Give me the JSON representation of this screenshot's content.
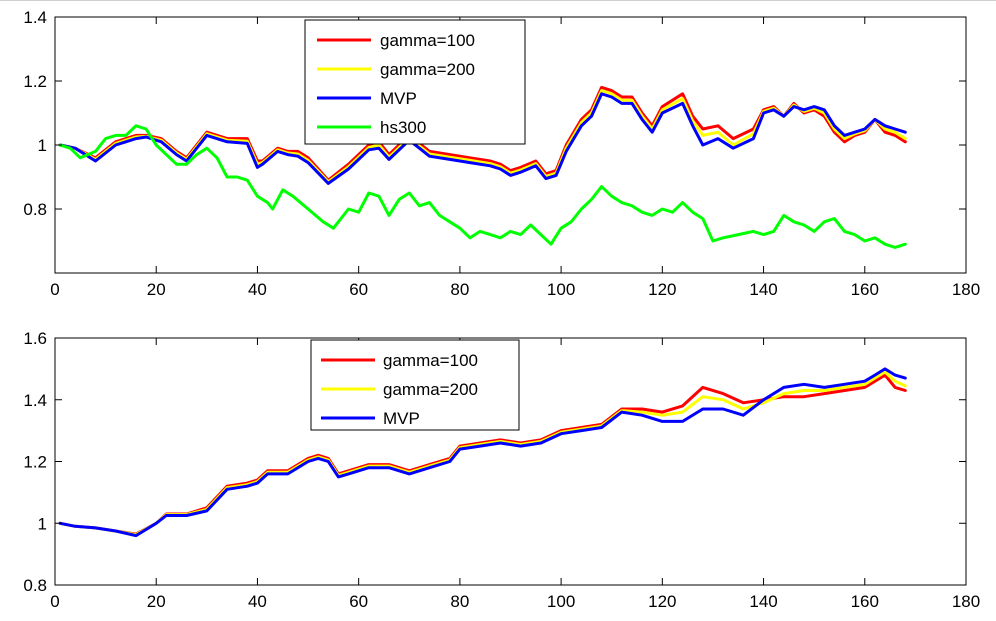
{
  "chart_data": [
    {
      "type": "line",
      "title": "",
      "xlabel": "",
      "ylabel": "",
      "xlim": [
        0,
        180
      ],
      "ylim": [
        0.6,
        1.4
      ],
      "xticks": [
        0,
        20,
        40,
        60,
        80,
        100,
        120,
        140,
        160,
        180
      ],
      "yticks": [
        0.8,
        1,
        1.2,
        1.4
      ],
      "x_tick_labels": [
        "0",
        "20",
        "40",
        "60",
        "80",
        "100",
        "120",
        "140",
        "160",
        "180"
      ],
      "y_tick_labels": [
        "0.8",
        "1",
        "1.2",
        "1.4"
      ],
      "grid": false,
      "legend_placement": "top-center",
      "series": [
        {
          "name": "gamma=100",
          "color": "#ff0000",
          "x": [
            1,
            4,
            8,
            12,
            16,
            18,
            21,
            24,
            26,
            30,
            34,
            38,
            40,
            41,
            44,
            46,
            48,
            50,
            54,
            58,
            62,
            64,
            66,
            70,
            74,
            78,
            82,
            86,
            88,
            90,
            92,
            95,
            97,
            99,
            101,
            104,
            106,
            108,
            110,
            112,
            114,
            116,
            118,
            120,
            124,
            126,
            128,
            131,
            134,
            138,
            140,
            142,
            144,
            146,
            148,
            150,
            152,
            154,
            156,
            158,
            160,
            162,
            164,
            166,
            168
          ],
          "y": [
            1.0,
            0.99,
            0.96,
            1.01,
            1.03,
            1.03,
            1.02,
            0.98,
            0.96,
            1.04,
            1.02,
            1.02,
            0.95,
            0.95,
            0.99,
            0.98,
            0.98,
            0.96,
            0.89,
            0.94,
            1.0,
            1.01,
            0.97,
            1.03,
            0.98,
            0.97,
            0.96,
            0.95,
            0.94,
            0.92,
            0.93,
            0.95,
            0.91,
            0.92,
            1.0,
            1.08,
            1.11,
            1.18,
            1.17,
            1.15,
            1.15,
            1.1,
            1.06,
            1.12,
            1.16,
            1.09,
            1.05,
            1.06,
            1.02,
            1.05,
            1.11,
            1.12,
            1.09,
            1.13,
            1.1,
            1.11,
            1.09,
            1.04,
            1.01,
            1.03,
            1.04,
            1.08,
            1.04,
            1.03,
            1.01
          ]
        },
        {
          "name": "gamma=200",
          "color": "#ffff00",
          "x": [
            1,
            4,
            8,
            12,
            16,
            18,
            21,
            24,
            26,
            30,
            34,
            38,
            40,
            41,
            44,
            46,
            48,
            50,
            54,
            58,
            62,
            64,
            66,
            70,
            74,
            78,
            82,
            86,
            88,
            90,
            92,
            95,
            97,
            99,
            101,
            104,
            106,
            108,
            110,
            112,
            114,
            116,
            118,
            120,
            124,
            126,
            128,
            131,
            134,
            138,
            140,
            142,
            144,
            146,
            148,
            150,
            152,
            154,
            156,
            158,
            160,
            162,
            164,
            166,
            168
          ],
          "y": [
            1.0,
            0.99,
            0.955,
            1.005,
            1.025,
            1.027,
            1.015,
            0.975,
            0.955,
            1.035,
            1.015,
            1.012,
            0.94,
            0.945,
            0.985,
            0.975,
            0.972,
            0.952,
            0.885,
            0.932,
            0.992,
            1.0,
            0.962,
            1.022,
            0.972,
            0.962,
            0.952,
            0.942,
            0.932,
            0.912,
            0.922,
            0.942,
            0.902,
            0.912,
            0.99,
            1.07,
            1.1,
            1.17,
            1.16,
            1.14,
            1.14,
            1.09,
            1.05,
            1.11,
            1.145,
            1.075,
            1.03,
            1.04,
            1.0,
            1.035,
            1.105,
            1.115,
            1.09,
            1.125,
            1.105,
            1.115,
            1.1,
            1.05,
            1.02,
            1.035,
            1.045,
            1.08,
            1.05,
            1.04,
            1.02
          ]
        },
        {
          "name": "MVP",
          "color": "#0000ff",
          "x": [
            1,
            4,
            8,
            12,
            16,
            18,
            21,
            24,
            26,
            30,
            34,
            38,
            40,
            41,
            44,
            46,
            48,
            50,
            54,
            58,
            62,
            64,
            66,
            70,
            74,
            78,
            82,
            86,
            88,
            90,
            92,
            95,
            97,
            99,
            101,
            104,
            106,
            108,
            110,
            112,
            114,
            116,
            118,
            120,
            124,
            126,
            128,
            131,
            134,
            138,
            140,
            142,
            144,
            146,
            148,
            150,
            152,
            154,
            156,
            158,
            160,
            162,
            164,
            166,
            168
          ],
          "y": [
            1.0,
            0.99,
            0.95,
            1.0,
            1.02,
            1.025,
            1.01,
            0.97,
            0.95,
            1.03,
            1.01,
            1.005,
            0.93,
            0.94,
            0.98,
            0.97,
            0.965,
            0.945,
            0.88,
            0.925,
            0.985,
            0.99,
            0.955,
            1.015,
            0.965,
            0.955,
            0.945,
            0.935,
            0.925,
            0.905,
            0.915,
            0.935,
            0.895,
            0.905,
            0.98,
            1.06,
            1.09,
            1.16,
            1.15,
            1.13,
            1.13,
            1.08,
            1.04,
            1.1,
            1.13,
            1.06,
            1.0,
            1.02,
            0.99,
            1.02,
            1.1,
            1.11,
            1.09,
            1.12,
            1.11,
            1.12,
            1.11,
            1.06,
            1.03,
            1.04,
            1.05,
            1.08,
            1.06,
            1.05,
            1.04
          ]
        },
        {
          "name": "hs300",
          "color": "#00ff00",
          "x": [
            1,
            3,
            5,
            8,
            10,
            12,
            14,
            16,
            18,
            20,
            22,
            24,
            26,
            28,
            30,
            32,
            34,
            36,
            38,
            40,
            42,
            43,
            45,
            47,
            50,
            53,
            55,
            58,
            60,
            62,
            64,
            66,
            68,
            70,
            72,
            74,
            76,
            78,
            80,
            82,
            84,
            86,
            88,
            90,
            92,
            94,
            96,
            98,
            100,
            102,
            104,
            106,
            108,
            110,
            112,
            114,
            116,
            118,
            120,
            122,
            124,
            126,
            128,
            130,
            132,
            135,
            138,
            140,
            142,
            144,
            146,
            148,
            150,
            152,
            154,
            156,
            158,
            160,
            162,
            164,
            166,
            168
          ],
          "y": [
            1.0,
            0.99,
            0.96,
            0.98,
            1.02,
            1.03,
            1.03,
            1.06,
            1.05,
            1.0,
            0.97,
            0.94,
            0.94,
            0.97,
            0.99,
            0.96,
            0.9,
            0.9,
            0.89,
            0.84,
            0.82,
            0.8,
            0.86,
            0.84,
            0.8,
            0.76,
            0.74,
            0.8,
            0.79,
            0.85,
            0.84,
            0.78,
            0.83,
            0.85,
            0.81,
            0.82,
            0.78,
            0.76,
            0.74,
            0.71,
            0.73,
            0.72,
            0.71,
            0.73,
            0.72,
            0.75,
            0.72,
            0.69,
            0.74,
            0.76,
            0.8,
            0.83,
            0.87,
            0.84,
            0.82,
            0.81,
            0.79,
            0.78,
            0.8,
            0.79,
            0.82,
            0.79,
            0.77,
            0.7,
            0.71,
            0.72,
            0.73,
            0.72,
            0.73,
            0.78,
            0.76,
            0.75,
            0.73,
            0.76,
            0.77,
            0.73,
            0.72,
            0.7,
            0.71,
            0.69,
            0.68,
            0.69
          ]
        }
      ]
    },
    {
      "type": "line",
      "title": "",
      "xlabel": "",
      "ylabel": "",
      "xlim": [
        0,
        180
      ],
      "ylim": [
        0.8,
        1.6
      ],
      "xticks": [
        0,
        20,
        40,
        60,
        80,
        100,
        120,
        140,
        160,
        180
      ],
      "yticks": [
        0.8,
        1,
        1.2,
        1.4,
        1.6
      ],
      "x_tick_labels": [
        "0",
        "20",
        "40",
        "60",
        "80",
        "100",
        "120",
        "140",
        "160",
        "180"
      ],
      "y_tick_labels": [
        "0.8",
        "1",
        "1.2",
        "1.4",
        "1.6"
      ],
      "grid": false,
      "legend_placement": "top-center",
      "series": [
        {
          "name": "gamma=100",
          "color": "#ff0000",
          "x": [
            1,
            4,
            8,
            12,
            16,
            20,
            22,
            26,
            30,
            34,
            38,
            40,
            42,
            46,
            50,
            52,
            54,
            56,
            58,
            62,
            66,
            70,
            74,
            78,
            80,
            84,
            88,
            92,
            96,
            100,
            104,
            108,
            112,
            116,
            120,
            124,
            128,
            132,
            136,
            140,
            144,
            148,
            152,
            156,
            160,
            162,
            164,
            166,
            168
          ],
          "y": [
            1.0,
            0.99,
            0.985,
            0.975,
            0.965,
            1.0,
            1.03,
            1.03,
            1.05,
            1.12,
            1.13,
            1.14,
            1.17,
            1.17,
            1.21,
            1.22,
            1.21,
            1.16,
            1.17,
            1.19,
            1.19,
            1.17,
            1.19,
            1.21,
            1.25,
            1.26,
            1.27,
            1.26,
            1.27,
            1.3,
            1.31,
            1.32,
            1.37,
            1.37,
            1.36,
            1.38,
            1.44,
            1.42,
            1.39,
            1.4,
            1.41,
            1.41,
            1.42,
            1.43,
            1.44,
            1.46,
            1.48,
            1.44,
            1.43
          ]
        },
        {
          "name": "gamma=200",
          "color": "#ffff00",
          "x": [
            1,
            4,
            8,
            12,
            16,
            20,
            22,
            26,
            30,
            34,
            38,
            40,
            42,
            46,
            50,
            52,
            54,
            56,
            58,
            62,
            66,
            70,
            74,
            78,
            80,
            84,
            88,
            92,
            96,
            100,
            104,
            108,
            112,
            116,
            120,
            124,
            128,
            132,
            136,
            140,
            144,
            148,
            152,
            156,
            160,
            162,
            164,
            166,
            168
          ],
          "y": [
            1.0,
            0.99,
            0.985,
            0.975,
            0.963,
            1.0,
            1.028,
            1.028,
            1.045,
            1.115,
            1.125,
            1.135,
            1.165,
            1.165,
            1.205,
            1.215,
            1.205,
            1.155,
            1.165,
            1.185,
            1.185,
            1.165,
            1.185,
            1.205,
            1.245,
            1.255,
            1.265,
            1.255,
            1.265,
            1.295,
            1.305,
            1.315,
            1.365,
            1.36,
            1.35,
            1.36,
            1.41,
            1.4,
            1.37,
            1.39,
            1.42,
            1.43,
            1.43,
            1.44,
            1.45,
            1.47,
            1.49,
            1.46,
            1.445
          ]
        },
        {
          "name": "MVP",
          "color": "#0000ff",
          "x": [
            1,
            4,
            8,
            12,
            16,
            20,
            22,
            26,
            30,
            34,
            38,
            40,
            42,
            46,
            50,
            52,
            54,
            56,
            58,
            62,
            66,
            70,
            74,
            78,
            80,
            84,
            88,
            92,
            96,
            100,
            104,
            108,
            112,
            116,
            120,
            124,
            128,
            132,
            136,
            140,
            144,
            148,
            152,
            156,
            160,
            162,
            164,
            166,
            168
          ],
          "y": [
            1.0,
            0.99,
            0.985,
            0.975,
            0.96,
            1.0,
            1.025,
            1.025,
            1.04,
            1.11,
            1.12,
            1.13,
            1.16,
            1.16,
            1.2,
            1.21,
            1.2,
            1.15,
            1.16,
            1.18,
            1.18,
            1.16,
            1.18,
            1.2,
            1.24,
            1.25,
            1.26,
            1.25,
            1.26,
            1.29,
            1.3,
            1.31,
            1.36,
            1.35,
            1.33,
            1.33,
            1.37,
            1.37,
            1.35,
            1.4,
            1.44,
            1.45,
            1.44,
            1.45,
            1.46,
            1.48,
            1.5,
            1.48,
            1.47
          ]
        }
      ]
    }
  ]
}
